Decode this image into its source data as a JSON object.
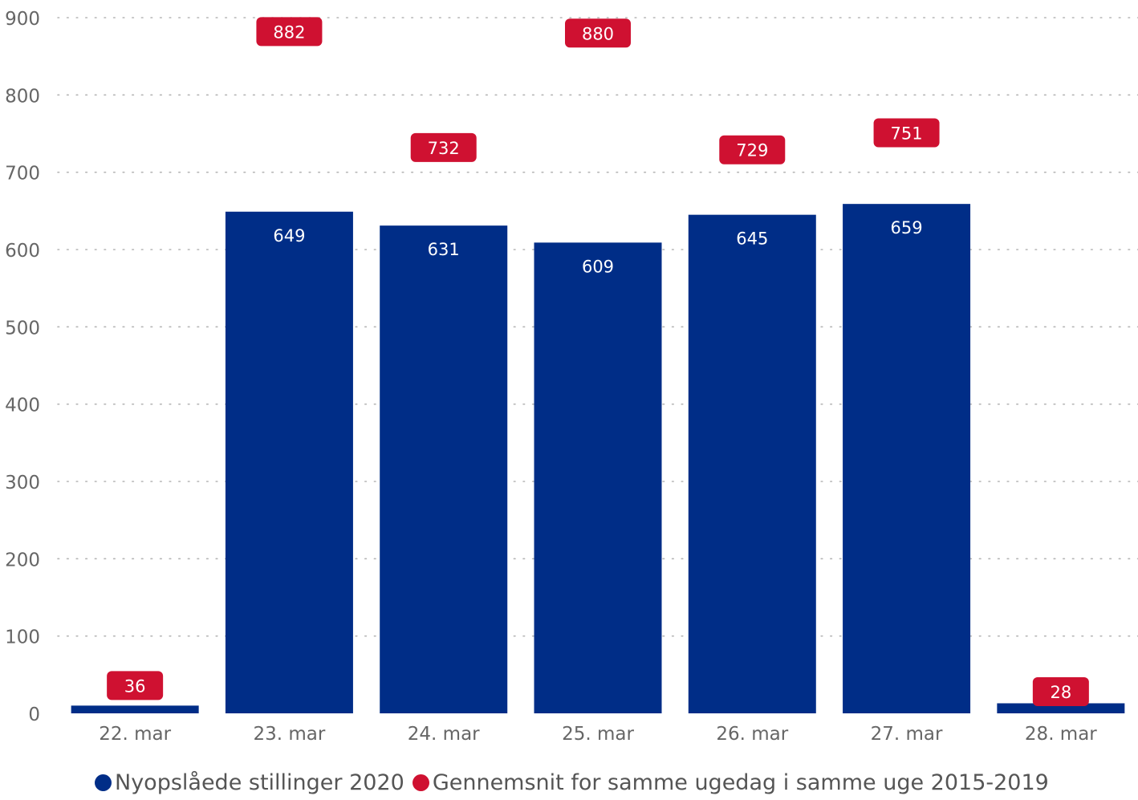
{
  "chart_data": {
    "type": "bar",
    "categories": [
      "22. mar",
      "23. mar",
      "24. mar",
      "25. mar",
      "26. mar",
      "27. mar",
      "28. mar"
    ],
    "series": [
      {
        "name": "Nyopslåede stillinger 2020",
        "color": "#002d87",
        "values": [
          10,
          649,
          631,
          609,
          645,
          659,
          13
        ],
        "labels": [
          "",
          "649",
          "631",
          "609",
          "645",
          "659",
          ""
        ]
      },
      {
        "name": "Gennemsnit for samme ugedag i samme uge 2015-2019",
        "color": "#cf1131",
        "marker": "label-badge",
        "values": [
          36,
          882,
          732,
          880,
          729,
          751,
          28
        ],
        "labels": [
          "36",
          "882",
          "732",
          "880",
          "729",
          "751",
          "28"
        ]
      }
    ],
    "yticks": [
      "0",
      "100",
      "200",
      "300",
      "400",
      "500",
      "600",
      "700",
      "800",
      "900"
    ],
    "ylim": [
      0,
      900
    ],
    "grid": true,
    "legend_position": "bottom-left"
  }
}
